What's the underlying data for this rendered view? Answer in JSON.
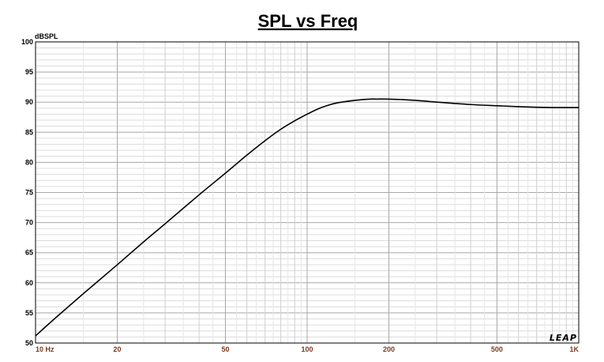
{
  "chart_data": {
    "type": "line",
    "title": "SPL vs Freq",
    "ylabel": "dBSPL",
    "xlabel": "",
    "x_scale": "log",
    "xlim": [
      10,
      1000
    ],
    "ylim": [
      50,
      100
    ],
    "grid": true,
    "y_ticks": [
      50,
      55,
      60,
      65,
      70,
      75,
      80,
      85,
      90,
      95,
      100
    ],
    "x_ticks": [
      {
        "value": 10,
        "label": "10  Hz"
      },
      {
        "value": 20,
        "label": "20"
      },
      {
        "value": 50,
        "label": "50"
      },
      {
        "value": 100,
        "label": "100"
      },
      {
        "value": 200,
        "label": "200"
      },
      {
        "value": 500,
        "label": "500"
      },
      {
        "value": 1000,
        "label": "1K"
      }
    ],
    "series": [
      {
        "color": "#000000",
        "x": [
          10,
          12,
          15,
          20,
          25,
          30,
          40,
          50,
          60,
          70,
          80,
          90,
          100,
          110,
          120,
          130,
          150,
          170,
          180,
          200,
          250,
          300,
          400,
          500,
          600,
          700,
          800,
          900,
          1000
        ],
        "y": [
          51.2,
          54.4,
          58.2,
          63.0,
          66.8,
          69.8,
          74.6,
          78.2,
          81.2,
          83.6,
          85.5,
          86.9,
          88.0,
          88.9,
          89.5,
          89.9,
          90.3,
          90.5,
          90.5,
          90.5,
          90.3,
          90.0,
          89.6,
          89.4,
          89.25,
          89.15,
          89.1,
          89.1,
          89.1
        ]
      }
    ],
    "brand": "LEAP"
  }
}
